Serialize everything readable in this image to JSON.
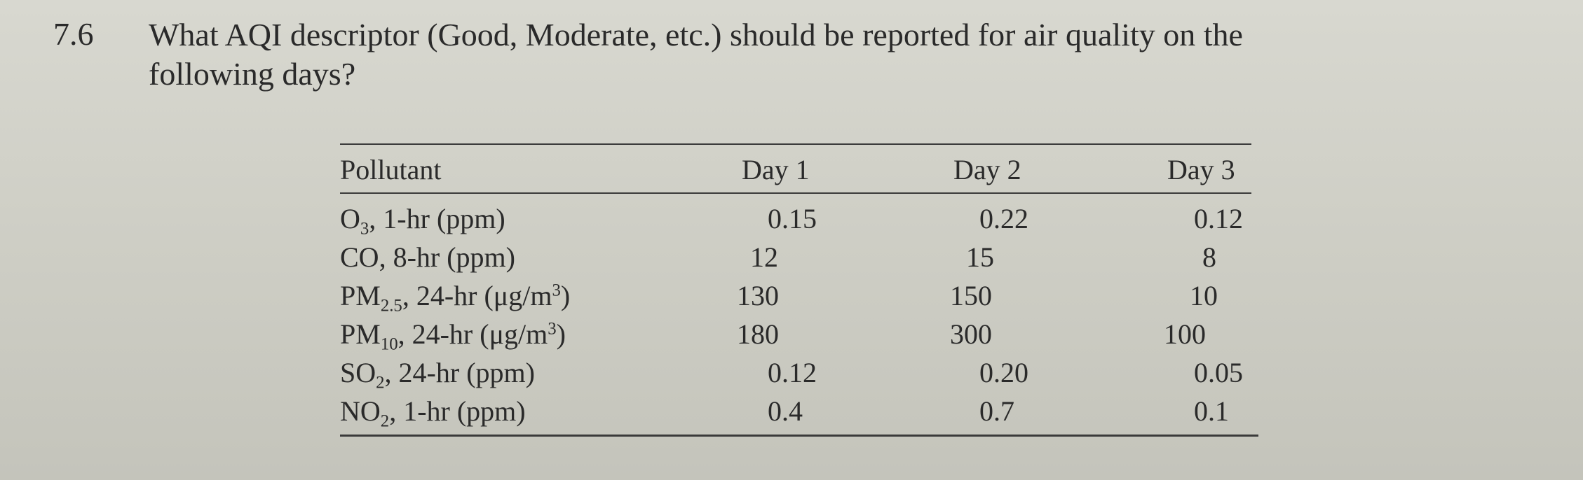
{
  "problem": {
    "number": "7.6",
    "question_line1": "What AQI descriptor (Good, Moderate, etc.) should be reported for air quality on the",
    "question_line2": "following days?"
  },
  "table": {
    "headers": {
      "pollutant": "Pollutant",
      "day1": "Day 1",
      "day2": "Day 2",
      "day3": "Day 3"
    },
    "rows": [
      {
        "label_main": "O",
        "label_sub": "3",
        "label_rest": ", 1-hr (ppm)",
        "day1": "0.15",
        "day2": "0.22",
        "day3": "0.12"
      },
      {
        "label_main": "CO, 8-hr (ppm)",
        "day1": "12",
        "day2": "15",
        "day3": "8"
      },
      {
        "label_main": "PM",
        "label_sub": "2.5",
        "label_rest": ", 24-hr (μg/m",
        "label_sup": "3",
        "label_end": ")",
        "day1": "130",
        "day2": "150",
        "day3": "10"
      },
      {
        "label_main": "PM",
        "label_sub": "10",
        "label_rest": ", 24-hr (μg/m",
        "label_sup": "3",
        "label_end": ")",
        "day1": "180",
        "day2": "300",
        "day3": "100"
      },
      {
        "label_main": "SO",
        "label_sub": "2",
        "label_rest": ", 24-hr (ppm)",
        "day1": "0.12",
        "day2": "0.20",
        "day3": "0.05"
      },
      {
        "label_main": "NO",
        "label_sub": "2",
        "label_rest": ", 1-hr (ppm)",
        "day1": "0.4",
        "day2": "0.7",
        "day3": "0.1"
      }
    ]
  }
}
